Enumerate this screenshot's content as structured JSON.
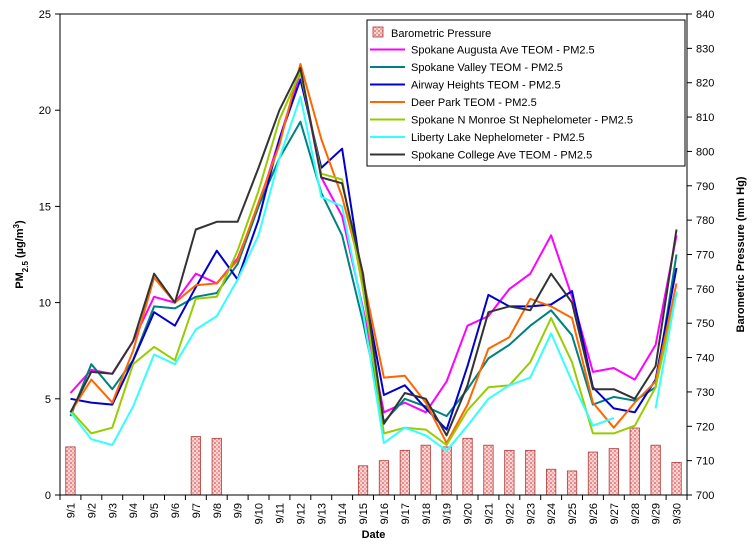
{
  "chart_data": {
    "type": "line",
    "title": "",
    "xlabel": "Date",
    "ylabel": "PM2.5 (µg/m3)",
    "ylabel_parts": {
      "main": "PM",
      "sub": "2.5",
      "unit_open": " (µg/m",
      "sup": "3",
      "unit_close": ")"
    },
    "y2label": "Barometric Pressure (mm Hg)",
    "ylim": [
      0,
      25
    ],
    "yticks": [
      "0",
      "5",
      "10",
      "15",
      "20",
      "25"
    ],
    "y2lim": [
      700,
      840
    ],
    "y2ticks": [
      "700",
      "710",
      "720",
      "730",
      "740",
      "750",
      "760",
      "770",
      "780",
      "790",
      "800",
      "810",
      "820",
      "830",
      "840"
    ],
    "grid": false,
    "legend_position": "top-right",
    "categories": [
      "9/1",
      "9/2",
      "9/3",
      "9/4",
      "9/5",
      "9/6",
      "9/7",
      "9/8",
      "9/9",
      "9/10",
      "9/11",
      "9/12",
      "9/13",
      "9/14",
      "9/15",
      "9/16",
      "9/17",
      "9/18",
      "9/19",
      "9/20",
      "9/21",
      "9/22",
      "9/23",
      "9/24",
      "9/25",
      "9/26",
      "9/27",
      "9/28",
      "9/29",
      "9/30"
    ],
    "bar_series": {
      "name": "Barometric Pressure",
      "axis": "right",
      "color": "#f4a3a3",
      "values": [
        714,
        null,
        null,
        null,
        null,
        null,
        717,
        716.5,
        null,
        null,
        null,
        null,
        null,
        null,
        708.5,
        710,
        713,
        714.5,
        714,
        716.5,
        714.5,
        713,
        713,
        707.5,
        707,
        712.5,
        713.5,
        719.5,
        714.5,
        709.5
      ]
    },
    "series": [
      {
        "name": "Spokane Augusta Ave TEOM - PM2.5",
        "color": "#ff00ff",
        "values": [
          5.3,
          6.5,
          6.3,
          8.0,
          10.3,
          10.0,
          11.5,
          11.0,
          12.3,
          15.0,
          18.5,
          22.0,
          16.5,
          14.5,
          9.7,
          4.3,
          4.8,
          4.3,
          5.9,
          8.8,
          9.3,
          10.7,
          11.5,
          13.5,
          10.3,
          6.4,
          6.6,
          6.0,
          7.8,
          13.5
        ]
      },
      {
        "name": "Spokane Valley TEOM - PM2.5",
        "color": "#008080",
        "values": [
          4.1,
          6.8,
          5.5,
          7.0,
          9.8,
          9.7,
          10.3,
          10.5,
          12.0,
          15.0,
          17.5,
          19.4,
          15.7,
          13.5,
          9.0,
          3.8,
          5.0,
          4.6,
          4.1,
          5.5,
          7.1,
          7.8,
          8.8,
          9.6,
          8.3,
          4.7,
          5.1,
          4.9,
          5.6,
          12.5
        ]
      },
      {
        "name": "Airway Heights TEOM - PM2.5",
        "color": "#0000cc",
        "values": [
          5.0,
          4.8,
          4.7,
          7.0,
          9.5,
          8.8,
          10.8,
          12.7,
          11.2,
          14.3,
          18.5,
          21.6,
          17.0,
          18.0,
          11.0,
          5.2,
          5.7,
          4.5,
          3.4,
          6.7,
          10.4,
          9.8,
          9.8,
          9.9,
          10.6,
          5.6,
          4.5,
          4.3,
          6.0,
          11.8
        ]
      },
      {
        "name": "Deer Park TEOM - PM2.5",
        "color": "#ff6600",
        "values": [
          4.3,
          6.0,
          4.8,
          7.5,
          11.3,
          10.0,
          10.9,
          11.0,
          12.2,
          15.2,
          18.2,
          22.4,
          18.5,
          15.5,
          11.3,
          6.1,
          6.2,
          4.8,
          2.7,
          4.7,
          7.6,
          8.2,
          10.2,
          9.8,
          9.2,
          4.8,
          3.5,
          4.8,
          5.9,
          11.0
        ]
      },
      {
        "name": "Spokane N Monroe St Nephelometer - PM2.5",
        "color": "#99cc00",
        "values": [
          4.4,
          3.2,
          3.5,
          6.8,
          7.7,
          7.0,
          10.2,
          10.3,
          12.7,
          15.8,
          19.5,
          22.0,
          16.7,
          16.4,
          10.7,
          3.2,
          3.5,
          3.4,
          2.6,
          4.4,
          5.6,
          5.7,
          6.9,
          9.2,
          6.9,
          3.2,
          3.2,
          3.6,
          5.6,
          10.5
        ]
      },
      {
        "name": "Liberty Lake Nephelometer - PM2.5",
        "color": "#33ffff",
        "values": [
          4.3,
          2.9,
          2.6,
          4.6,
          7.3,
          6.8,
          8.6,
          9.3,
          11.2,
          13.5,
          17.5,
          20.7,
          15.5,
          15.0,
          9.5,
          2.7,
          3.5,
          3.1,
          2.3,
          3.6,
          5.0,
          5.7,
          6.1,
          8.4,
          5.9,
          3.6,
          4.0,
          null,
          4.5,
          10.6
        ]
      },
      {
        "name": "Spokane College Ave TEOM - PM2.5",
        "color": "#333333",
        "values": [
          4.3,
          6.4,
          6.3,
          8.0,
          11.5,
          10.0,
          13.8,
          14.2,
          14.2,
          17.0,
          20.0,
          22.2,
          16.5,
          16.2,
          11.5,
          3.7,
          5.3,
          5.0,
          3.1,
          5.7,
          9.5,
          9.8,
          9.6,
          11.5,
          10.0,
          5.5,
          5.5,
          5.0,
          6.7,
          13.8
        ]
      }
    ]
  }
}
